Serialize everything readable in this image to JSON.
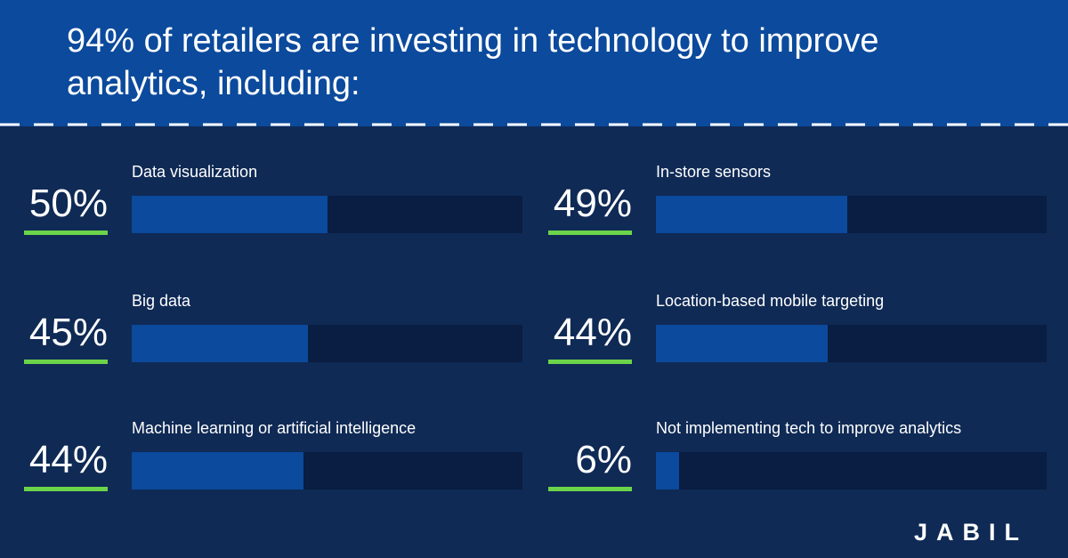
{
  "header": {
    "title": "94% of retailers are investing in technology to improve analytics, including:"
  },
  "chart_data": {
    "type": "bar",
    "title": "94% of retailers are investing in technology to improve analytics, including:",
    "unit": "%",
    "ylim": [
      0,
      100
    ],
    "items": [
      {
        "label": "Data visualization",
        "value": 50,
        "display": "50%"
      },
      {
        "label": "In-store sensors",
        "value": 49,
        "display": "49%"
      },
      {
        "label": "Big data",
        "value": 45,
        "display": "45%"
      },
      {
        "label": "Location-based mobile targeting",
        "value": 44,
        "display": "44%"
      },
      {
        "label": "Machine learning or artificial intelligence",
        "value": 44,
        "display": "44%"
      },
      {
        "label": "Not implementing tech to improve analytics",
        "value": 6,
        "display": "6%"
      }
    ]
  },
  "logo": {
    "text": "JABIL"
  },
  "colors": {
    "background": "#0f2a55",
    "header": "#0b4a9c",
    "bar_fill": "#0b4a9c",
    "bar_track": "#091e42",
    "accent_underline": "#6cd44a",
    "text": "#ffffff"
  }
}
